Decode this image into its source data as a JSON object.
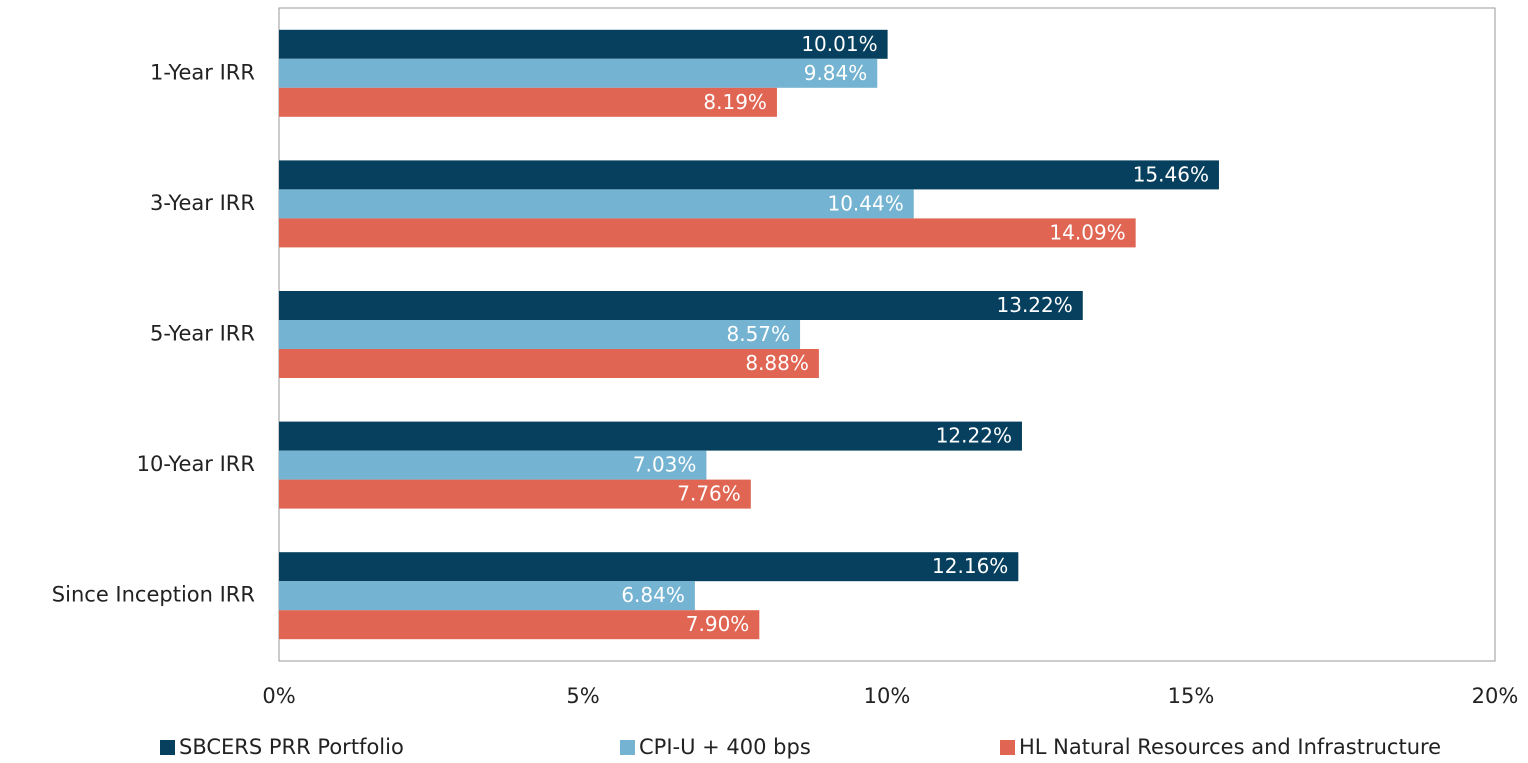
{
  "chart_data": {
    "type": "barh",
    "categories": [
      "1-Year IRR",
      "3-Year IRR",
      "5-Year IRR",
      "10-Year IRR",
      "Since Inception IRR"
    ],
    "series": [
      {
        "name": "SBCERS PRR Portfolio",
        "color": "#07405f",
        "values": [
          10.01,
          15.46,
          13.22,
          12.22,
          12.16
        ],
        "value_labels": [
          "10.01%",
          "15.46%",
          "13.22%",
          "12.22%",
          "12.16%"
        ]
      },
      {
        "name": "CPI-U + 400 bps",
        "color": "#74b3d1",
        "values": [
          9.84,
          10.44,
          8.57,
          7.03,
          6.84
        ],
        "value_labels": [
          "9.84%",
          "10.44%",
          "8.57%",
          "7.03%",
          "6.84%"
        ]
      },
      {
        "name": "HL Natural Resources and Infrastructure",
        "color": "#e06553",
        "values": [
          8.19,
          14.09,
          8.88,
          7.76,
          7.9
        ],
        "value_labels": [
          "8.19%",
          "14.09%",
          "8.88%",
          "7.76%",
          "7.90%"
        ]
      }
    ],
    "xlim": [
      0,
      20
    ],
    "xticks": [
      {
        "value": 0,
        "label": "0%"
      },
      {
        "value": 5,
        "label": "5%"
      },
      {
        "value": 10,
        "label": "10%"
      },
      {
        "value": 15,
        "label": "15%"
      },
      {
        "value": 20,
        "label": "20%"
      }
    ],
    "grid": false,
    "legend": "bottom"
  }
}
